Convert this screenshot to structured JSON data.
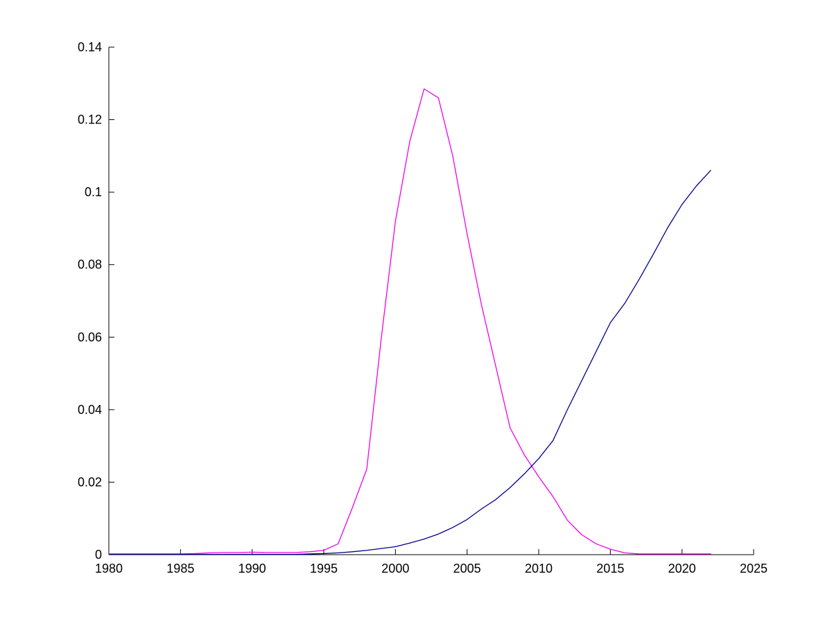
{
  "chart_data": {
    "type": "line",
    "title": "",
    "xlabel": "",
    "ylabel": "",
    "grid": false,
    "legend": null,
    "background_color": "#ffffff",
    "axis_color": "#000000",
    "xlim": [
      1980,
      2025
    ],
    "ylim": [
      0,
      0.14
    ],
    "xticks": [
      1980,
      1985,
      1990,
      1995,
      2000,
      2005,
      2010,
      2015,
      2020,
      2025
    ],
    "xtick_labels": [
      "1980",
      "1985",
      "1990",
      "1995",
      "2000",
      "2005",
      "2010",
      "2015",
      "2020",
      "2025"
    ],
    "yticks": [
      0,
      0.02,
      0.04,
      0.06,
      0.08,
      0.1,
      0.12,
      0.14
    ],
    "ytick_labels": [
      "0",
      "0.02",
      "0.04",
      "0.06",
      "0.08",
      "0.1",
      "0.12",
      "0.14"
    ],
    "x": [
      1980,
      1981,
      1982,
      1983,
      1984,
      1985,
      1986,
      1987,
      1988,
      1989,
      1990,
      1991,
      1992,
      1993,
      1994,
      1995,
      1996,
      1997,
      1998,
      1999,
      2000,
      2001,
      2002,
      2003,
      2004,
      2005,
      2006,
      2007,
      2008,
      2009,
      2010,
      2011,
      2012,
      2013,
      2014,
      2015,
      2016,
      2017,
      2018,
      2019,
      2020,
      2021,
      2022
    ],
    "series": [
      {
        "name": "magenta-bell-curve",
        "color": "#ee00ee",
        "values": [
          0.0002,
          0.0002,
          0.0002,
          0.0002,
          0.0002,
          0.0002,
          0.0003,
          0.0005,
          0.0006,
          0.0006,
          0.0007,
          0.0006,
          0.0006,
          0.0006,
          0.0008,
          0.0012,
          0.003,
          0.013,
          0.0236,
          0.0593,
          0.092,
          0.114,
          0.1285,
          0.126,
          0.11,
          0.0885,
          0.069,
          0.052,
          0.035,
          0.0275,
          0.0215,
          0.016,
          0.0095,
          0.0055,
          0.003,
          0.0015,
          0.0005,
          0.0002,
          0.0002,
          0.0002,
          0.0002,
          0.0002,
          0.0002
        ]
      },
      {
        "name": "blue-sigmoid-curve",
        "color": "#00008b",
        "values": [
          0.0001,
          0.0001,
          0.0001,
          0.0001,
          0.0001,
          0.0001,
          0.0001,
          0.0001,
          0.0001,
          0.0001,
          0.0001,
          0.0001,
          0.0001,
          0.0001,
          0.0002,
          0.0003,
          0.0005,
          0.0008,
          0.0012,
          0.0017,
          0.0022,
          0.0032,
          0.0043,
          0.0057,
          0.0075,
          0.0097,
          0.0126,
          0.0152,
          0.0185,
          0.0223,
          0.0265,
          0.0315,
          0.04,
          0.048,
          0.056,
          0.064,
          0.0693,
          0.0759,
          0.0829,
          0.0902,
          0.0966,
          0.1017,
          0.106
        ]
      }
    ]
  }
}
